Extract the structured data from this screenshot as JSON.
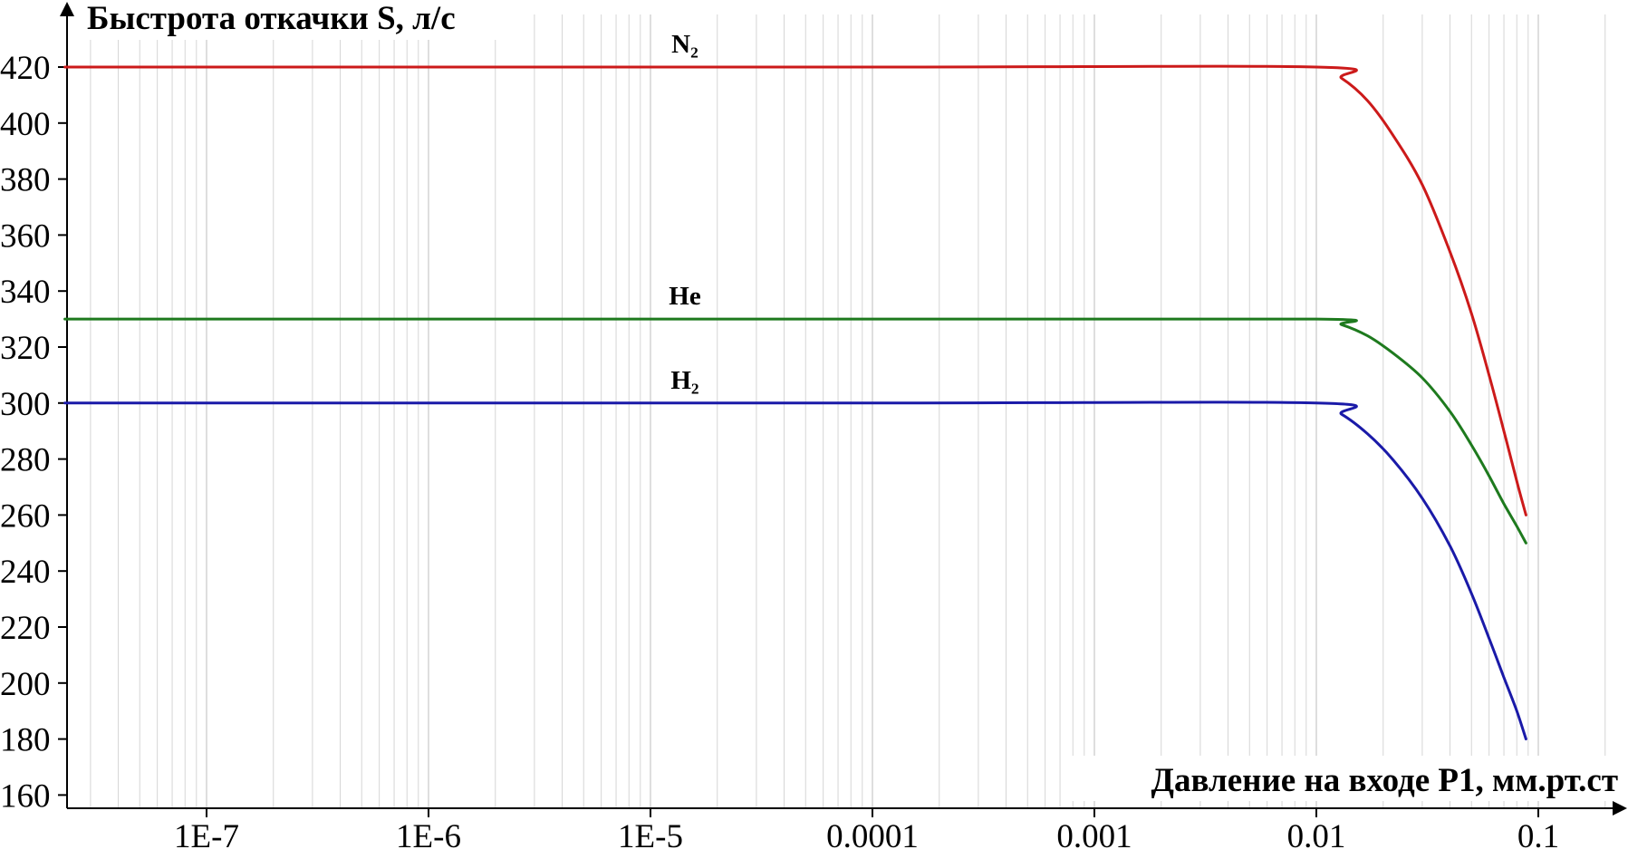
{
  "chart_data": {
    "type": "line",
    "title": "",
    "ylabel": "Быстрота откачки S, л/с",
    "xlabel": "Давление на входе P1, мм.рт.ст",
    "x_scale": "log",
    "xlim": [
      2.3e-08,
      0.25
    ],
    "ylim": [
      155,
      430
    ],
    "grid": true,
    "x_ticks": [
      1e-07,
      1e-06,
      1e-05,
      0.0001,
      0.001,
      0.01,
      0.1
    ],
    "x_tick_labels": [
      "1E-7",
      "1E-6",
      "1E-5",
      "0.0001",
      "0.001",
      "0.01",
      "0.1"
    ],
    "y_ticks": [
      160,
      180,
      200,
      220,
      240,
      260,
      280,
      300,
      320,
      340,
      360,
      380,
      400,
      420
    ],
    "y_tick_labels": [
      "160",
      "180",
      "200",
      "220",
      "240",
      "260",
      "280",
      "300",
      "320",
      "340",
      "360",
      "380",
      "400",
      "420"
    ],
    "series": [
      {
        "name": "N₂",
        "color": "#cc1a1a",
        "x": [
          2.3e-08,
          0.0001,
          0.01,
          0.013,
          0.017,
          0.022,
          0.03,
          0.04,
          0.05,
          0.06,
          0.07,
          0.08,
          0.088
        ],
        "y": [
          420,
          420,
          420,
          416,
          408,
          396,
          378,
          354,
          332,
          310,
          290,
          272,
          260
        ]
      },
      {
        "name": "He",
        "color": "#1e7a1e",
        "x": [
          2.3e-08,
          0.0001,
          0.01,
          0.013,
          0.017,
          0.022,
          0.03,
          0.04,
          0.05,
          0.06,
          0.07,
          0.08,
          0.088
        ],
        "y": [
          330,
          330,
          330,
          328,
          324,
          318,
          309,
          297,
          285,
          274,
          264,
          256,
          250
        ]
      },
      {
        "name": "H₂",
        "color": "#1a1aa8",
        "x": [
          2.3e-08,
          0.0001,
          0.01,
          0.013,
          0.017,
          0.022,
          0.03,
          0.04,
          0.05,
          0.06,
          0.07,
          0.08,
          0.088
        ],
        "y": [
          300,
          300,
          300,
          296,
          289,
          280,
          266,
          249,
          232,
          216,
          202,
          190,
          180
        ]
      }
    ]
  }
}
